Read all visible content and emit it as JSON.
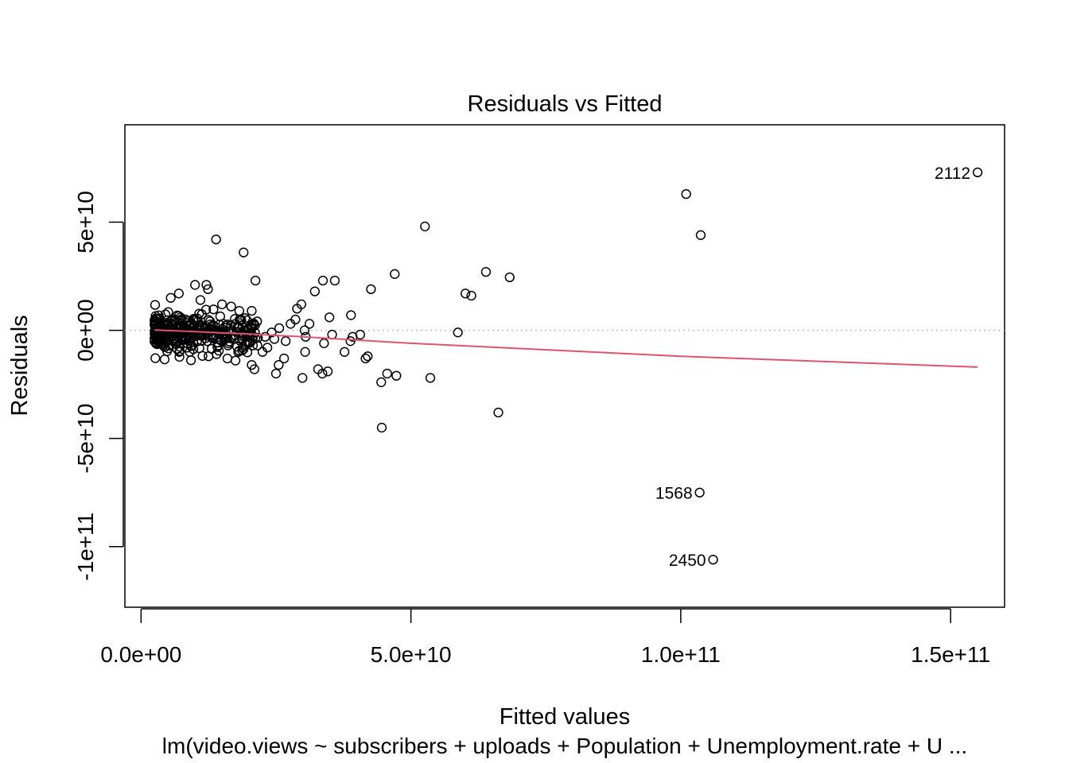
{
  "chart_data": {
    "type": "scatter",
    "title": "Residuals vs Fitted",
    "xlabel": "Fitted values",
    "ylabel": "Residuals",
    "subtitle": "lm(video.views ~ subscribers + uploads + Population + Unemployment.rate + U ...",
    "xlim": [
      -3000000000,
      160000000000
    ],
    "ylim": [
      -128000000000,
      95000000000
    ],
    "x_ticks": [
      0,
      50000000000,
      100000000000,
      150000000000
    ],
    "x_tick_labels": [
      "0.0e+00",
      "5.0e+10",
      "1.0e+11",
      "1.5e+11"
    ],
    "y_ticks": [
      -100000000000,
      -50000000000,
      0,
      50000000000
    ],
    "y_tick_labels": [
      "-1e+11",
      "-5e+10",
      "0e+00",
      "5e+10"
    ],
    "reference_line": {
      "y": 0,
      "style": "dotted",
      "color": "#bebebe"
    },
    "smooth_line": {
      "color": "#df536b",
      "x": [
        2500000000,
        6000000000,
        10000000000,
        15000000000,
        20000000000,
        30000000000,
        50000000000,
        100000000000,
        155000000000
      ],
      "y": [
        100000000,
        -200000000,
        -600000000,
        -1200000000,
        -1700000000,
        -3000000000,
        -6000000000,
        -12000000000,
        -17000000000
      ]
    },
    "labeled_points": [
      {
        "x": 155000000000,
        "y": 73000000000,
        "label": "2112"
      },
      {
        "x": 103500000000,
        "y": -75000000000,
        "label": "1568"
      },
      {
        "x": 106000000000,
        "y": -106000000000,
        "label": "2450"
      }
    ],
    "outer_points": {
      "x": [
        101000000000,
        103700000000,
        52600000000,
        13900000000,
        19000000000,
        21200000000,
        33700000000,
        35900000000,
        42600000000,
        47000000000,
        63900000000,
        68300000000,
        60100000000,
        61200000000,
        58700000000,
        38900000000,
        40600000000,
        39200000000,
        33900000000,
        35400000000,
        34900000000,
        28900000000,
        29700000000,
        32200000000,
        30500000000,
        31200000000,
        30300000000,
        25600000000,
        26800000000,
        37700000000,
        44500000000,
        45600000000,
        47300000000,
        53600000000,
        66200000000,
        44600000000,
        41600000000,
        42000000000,
        38800000000,
        30400000000,
        29900000000,
        32800000000,
        33600000000,
        34600000000,
        25000000000,
        25500000000,
        26500000000,
        22500000000,
        23000000000,
        24200000000,
        27700000000,
        28600000000,
        24700000000,
        23400000000
      ],
      "y": [
        63000000000,
        44000000000,
        48000000000,
        42000000000,
        36000000000,
        23000000000,
        23000000000,
        23000000000,
        19000000000,
        26000000000,
        27000000000,
        24500000000,
        17000000000,
        16000000000,
        -1000000000,
        7000000000,
        -2000000000,
        -3000000000,
        -6000000000,
        -2000000000,
        6000000000,
        10000000000,
        12000000000,
        18000000000,
        -3000000000,
        3000000000,
        0,
        1000000000,
        -5000000000,
        -10000000000,
        -24000000000,
        -20000000000,
        -21000000000,
        -22000000000,
        -38000000000,
        -45000000000,
        -13000000000,
        -12000000000,
        -5000000000,
        -10000000000,
        -22000000000,
        -18000000000,
        -20000000000,
        -19000000000,
        -20000000000,
        -16000000000,
        -13000000000,
        -10000000000,
        -3000000000,
        -1000000000,
        3000000000,
        5000000000,
        -4000000000,
        -8000000000
      ]
    },
    "dense_cluster": {
      "count": 340,
      "x_range": [
        2500000000,
        22000000000
      ],
      "y_center": -1000000000,
      "y_spread": 4500000000,
      "note_points_upper": {
        "x": [
          10000000000,
          12100000000,
          12400000000,
          7000000000,
          5500000000,
          11000000000,
          15000000000,
          16700000000,
          20500000000,
          18200000000
        ],
        "y": [
          21000000000,
          21000000000,
          19000000000,
          17000000000,
          15000000000,
          14000000000,
          12000000000,
          11000000000,
          9000000000,
          9000000000
        ]
      },
      "note_points_lower": {
        "x": [
          14000000000,
          16000000000,
          18000000000,
          21000000000,
          20500000000,
          12500000000,
          9000000000,
          17500000000
        ],
        "y": [
          -11000000000,
          -13000000000,
          -10000000000,
          -18000000000,
          -16000000000,
          -12000000000,
          -10000000000,
          -14000000000
        ]
      }
    }
  }
}
